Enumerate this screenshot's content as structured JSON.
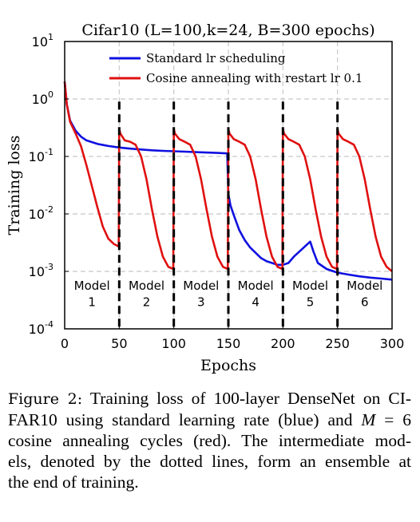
{
  "chart_data": {
    "type": "line",
    "title": "Cifar10 (L=100,k=24, B=300 epochs)",
    "xlabel": "Epochs",
    "ylabel": "Training loss",
    "xlim": [
      0,
      300
    ],
    "ylim_log10": [
      -4,
      1
    ],
    "y_scale": "log",
    "grid": true,
    "legend_position": "top",
    "x_ticks": [
      "0",
      "50",
      "100",
      "150",
      "200",
      "250",
      "300"
    ],
    "x_tick_values": [
      0,
      50,
      100,
      150,
      200,
      250,
      300
    ],
    "y_ticks": [
      {
        "base": "10",
        "exp": "1"
      },
      {
        "base": "10",
        "exp": "0"
      },
      {
        "base": "10",
        "exp": "-1"
      },
      {
        "base": "10",
        "exp": "-2"
      },
      {
        "base": "10",
        "exp": "-3"
      },
      {
        "base": "10",
        "exp": "-4"
      }
    ],
    "y_tick_values": [
      10,
      1,
      0.1,
      0.01,
      0.001,
      0.0001
    ],
    "series": [
      {
        "name": "Standard lr scheduling",
        "color": "#1010e0",
        "x": [
          0,
          2,
          5,
          10,
          15,
          20,
          30,
          40,
          50,
          60,
          70,
          80,
          90,
          100,
          110,
          120,
          130,
          140,
          149,
          150,
          152,
          155,
          160,
          165,
          170,
          175,
          180,
          185,
          190,
          195,
          200,
          205,
          210,
          215,
          220,
          225,
          228,
          232,
          240,
          250,
          260,
          270,
          280,
          290,
          300
        ],
        "y": [
          2.0,
          0.8,
          0.42,
          0.28,
          0.22,
          0.19,
          0.165,
          0.152,
          0.143,
          0.137,
          0.132,
          0.128,
          0.125,
          0.123,
          0.121,
          0.119,
          0.117,
          0.115,
          0.113,
          0.022,
          0.014,
          0.0095,
          0.0052,
          0.0035,
          0.0026,
          0.0021,
          0.0017,
          0.0015,
          0.0014,
          0.0013,
          0.0013,
          0.0014,
          0.0018,
          0.0022,
          0.0027,
          0.0033,
          0.0022,
          0.0014,
          0.0011,
          0.00095,
          0.00088,
          0.00082,
          0.00078,
          0.00075,
          0.00072
        ]
      },
      {
        "name": "Cosine annealing with restart lr 0.1",
        "color": "#e01010",
        "x": [
          0,
          2,
          5,
          10,
          15,
          20,
          25,
          30,
          35,
          40,
          45,
          49.5,
          50,
          51,
          55,
          60,
          65,
          70,
          75,
          80,
          85,
          90,
          95,
          99.5,
          100,
          101,
          105,
          110,
          115,
          120,
          125,
          130,
          135,
          140,
          145,
          149.5,
          150,
          151,
          155,
          160,
          165,
          170,
          175,
          180,
          185,
          190,
          195,
          199.5,
          200,
          201,
          205,
          210,
          215,
          220,
          225,
          230,
          235,
          240,
          245,
          249.5,
          250,
          251,
          255,
          260,
          265,
          270,
          275,
          280,
          285,
          290,
          295,
          300
        ],
        "y": [
          2.0,
          0.8,
          0.4,
          0.25,
          0.15,
          0.07,
          0.03,
          0.013,
          0.006,
          0.0037,
          0.003,
          0.0027,
          0.3,
          0.25,
          0.19,
          0.18,
          0.16,
          0.1,
          0.04,
          0.012,
          0.004,
          0.0018,
          0.0012,
          0.0011,
          0.3,
          0.25,
          0.2,
          0.18,
          0.16,
          0.1,
          0.04,
          0.012,
          0.004,
          0.0018,
          0.0012,
          0.0011,
          0.3,
          0.25,
          0.2,
          0.18,
          0.16,
          0.1,
          0.04,
          0.012,
          0.004,
          0.0018,
          0.0012,
          0.0011,
          0.3,
          0.25,
          0.2,
          0.18,
          0.16,
          0.1,
          0.04,
          0.012,
          0.004,
          0.0018,
          0.0012,
          0.0011,
          0.3,
          0.25,
          0.2,
          0.18,
          0.16,
          0.1,
          0.04,
          0.012,
          0.004,
          0.0018,
          0.0012,
          0.001
        ]
      }
    ],
    "restart_markers": [
      50,
      100,
      150,
      200,
      250
    ],
    "models": [
      {
        "label": "Model",
        "number": "1",
        "x_center": 25
      },
      {
        "label": "Model",
        "number": "2",
        "x_center": 75
      },
      {
        "label": "Model",
        "number": "3",
        "x_center": 125
      },
      {
        "label": "Model",
        "number": "4",
        "x_center": 175
      },
      {
        "label": "Model",
        "number": "5",
        "x_center": 225
      },
      {
        "label": "Model",
        "number": "6",
        "x_center": 275
      }
    ]
  },
  "caption": {
    "label": "Figure 2:",
    "line1_rest": "Training loss of 100-layer DenseNet on CI-",
    "line2_a": "FAR10 using standard learning rate (blue) and",
    "line2_math_var": "M",
    "line2_math_rest": " = 6",
    "line3": "cosine annealing cycles (red). The intermediate mod-",
    "line4": "els, denoted by the dotted lines, form an ensemble at",
    "line5": "the end of training."
  }
}
